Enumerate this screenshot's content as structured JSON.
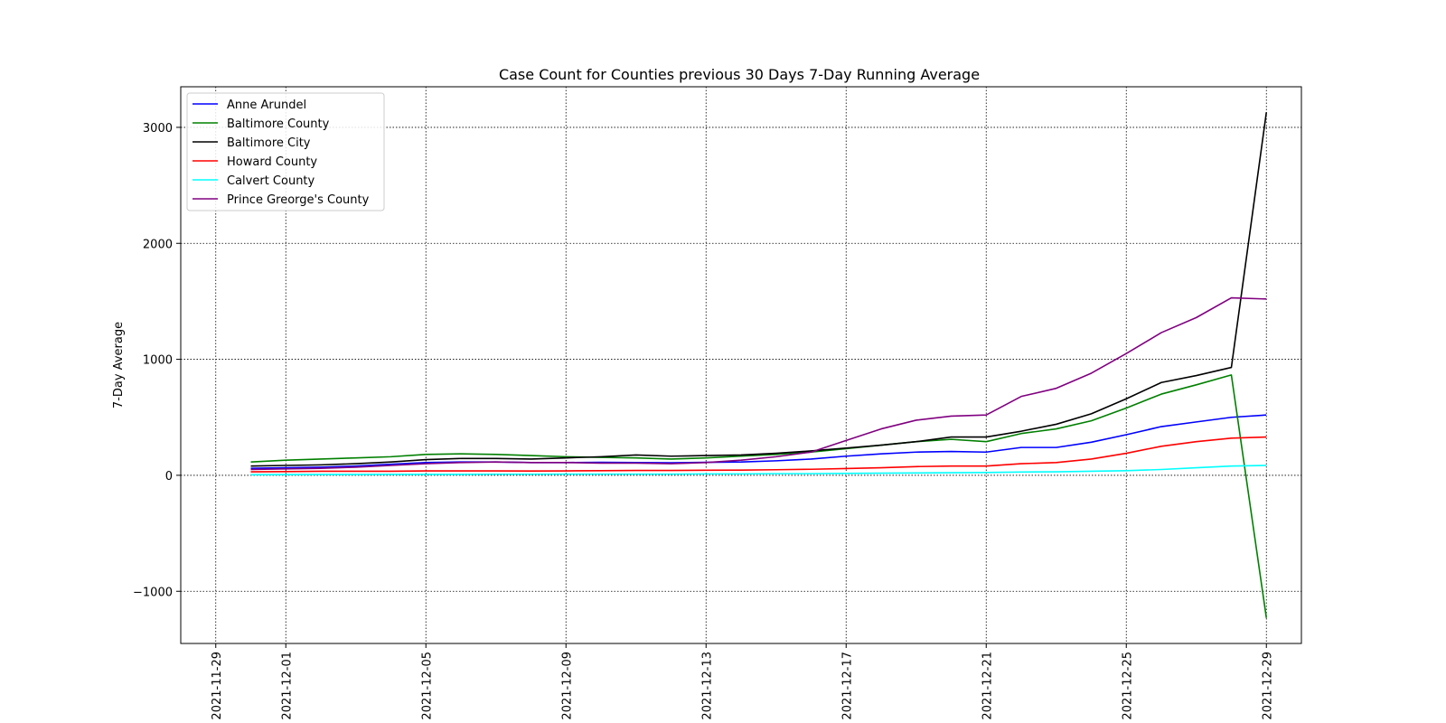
{
  "chart_data": {
    "type": "line",
    "title": "Case Count for Counties previous 30 Days 7-Day Running Average",
    "xlabel": "",
    "ylabel": "7-Day Average",
    "xlim": [
      "2021-11-28",
      "2021-12-30"
    ],
    "ylim": [
      -1450,
      3350
    ],
    "x_ticks": [
      "2021-11-29",
      "2021-12-01",
      "2021-12-05",
      "2021-12-09",
      "2021-12-13",
      "2021-12-17",
      "2021-12-21",
      "2021-12-25",
      "2021-12-29"
    ],
    "y_ticks": [
      -1000,
      0,
      1000,
      2000,
      3000
    ],
    "y_tick_labels": [
      "−1000",
      "0",
      "1000",
      "2000",
      "3000"
    ],
    "grid": true,
    "legend_position": "top-left",
    "x": [
      "2021-11-30",
      "2021-12-01",
      "2021-12-02",
      "2021-12-03",
      "2021-12-04",
      "2021-12-05",
      "2021-12-06",
      "2021-12-07",
      "2021-12-08",
      "2021-12-09",
      "2021-12-10",
      "2021-12-11",
      "2021-12-12",
      "2021-12-13",
      "2021-12-14",
      "2021-12-15",
      "2021-12-16",
      "2021-12-17",
      "2021-12-18",
      "2021-12-19",
      "2021-12-20",
      "2021-12-21",
      "2021-12-22",
      "2021-12-23",
      "2021-12-24",
      "2021-12-25",
      "2021-12-26",
      "2021-12-27",
      "2021-12-28",
      "2021-12-29"
    ],
    "series": [
      {
        "name": "Anne Arundel",
        "color": "#0000ff",
        "values": [
          60,
          65,
          70,
          80,
          95,
          110,
          115,
          115,
          110,
          110,
          112,
          110,
          108,
          112,
          115,
          125,
          140,
          165,
          185,
          200,
          205,
          200,
          240,
          240,
          285,
          350,
          420,
          460,
          500,
          520
        ]
      },
      {
        "name": "Baltimore County",
        "color": "#008000",
        "values": [
          115,
          130,
          140,
          150,
          160,
          180,
          185,
          180,
          170,
          160,
          155,
          150,
          140,
          150,
          165,
          180,
          200,
          230,
          260,
          290,
          310,
          290,
          360,
          400,
          470,
          580,
          700,
          780,
          865,
          -1230
        ]
      },
      {
        "name": "Baltimore City",
        "color": "#000000",
        "values": [
          80,
          85,
          90,
          100,
          115,
          135,
          145,
          145,
          140,
          150,
          160,
          175,
          165,
          170,
          175,
          190,
          210,
          235,
          260,
          290,
          330,
          330,
          380,
          440,
          530,
          660,
          800,
          860,
          930,
          3130
        ]
      },
      {
        "name": "Howard County",
        "color": "#ff0000",
        "values": [
          30,
          32,
          35,
          35,
          35,
          38,
          38,
          38,
          37,
          38,
          40,
          42,
          42,
          44,
          45,
          48,
          52,
          58,
          65,
          75,
          80,
          80,
          100,
          110,
          140,
          190,
          250,
          290,
          320,
          330
        ]
      },
      {
        "name": "Calvert County",
        "color": "#00ffff",
        "values": [
          5,
          6,
          7,
          7,
          8,
          8,
          8,
          9,
          9,
          10,
          10,
          10,
          10,
          12,
          12,
          14,
          14,
          16,
          18,
          20,
          22,
          24,
          28,
          30,
          35,
          40,
          50,
          65,
          80,
          85
        ]
      },
      {
        "name": "Prince Greorge's County",
        "color": "#800080",
        "values": [
          50,
          55,
          60,
          70,
          85,
          100,
          110,
          115,
          110,
          110,
          105,
          105,
          100,
          110,
          130,
          160,
          200,
          300,
          400,
          475,
          510,
          520,
          680,
          750,
          880,
          1050,
          1230,
          1360,
          1530,
          1520
        ]
      }
    ]
  }
}
